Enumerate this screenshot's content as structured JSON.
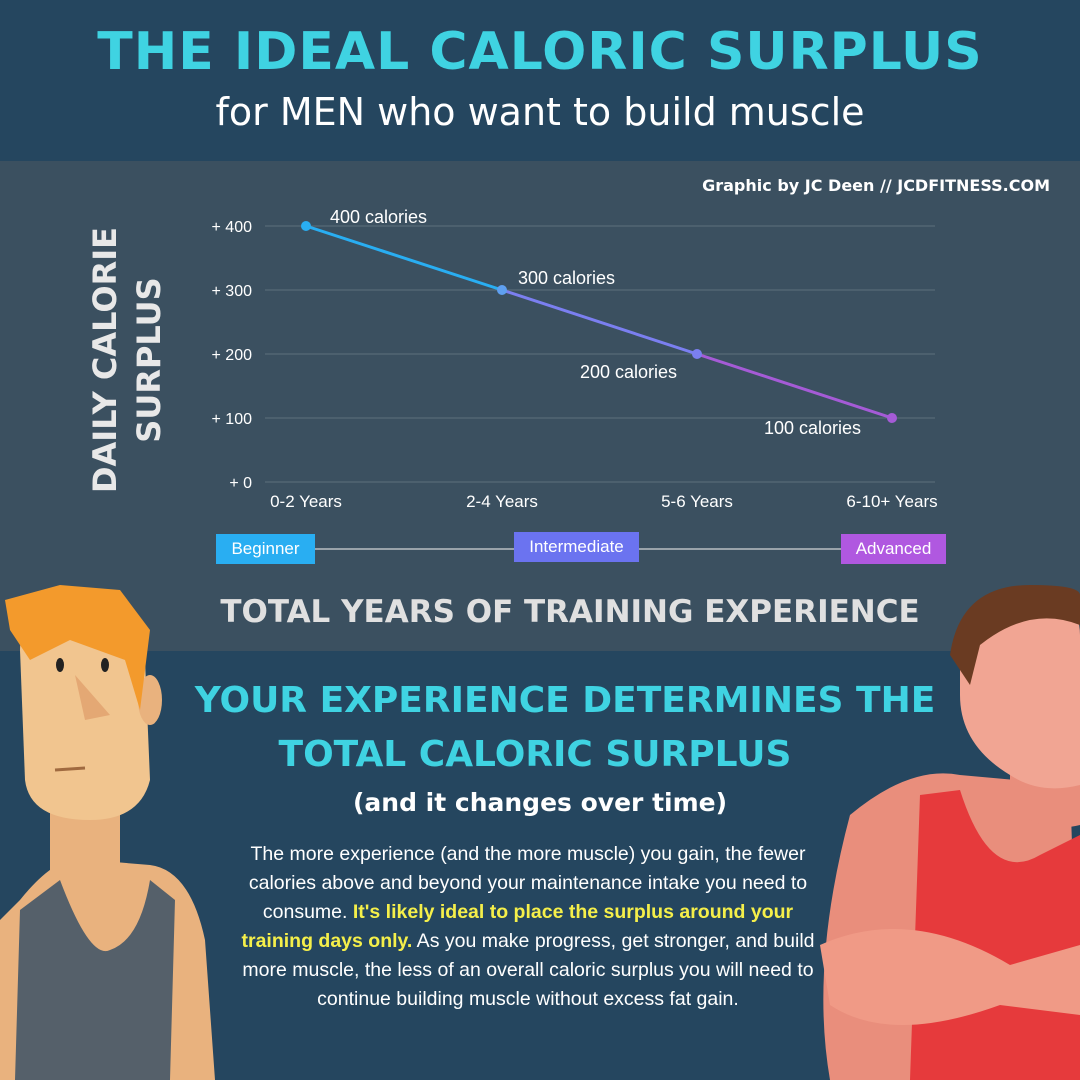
{
  "header": {
    "title": "THE IDEAL CALORIC SURPLUS",
    "subtitle": "for MEN who want to build muscle"
  },
  "credit": "Graphic by JC Deen // JCDFITNESS.COM",
  "chart_data": {
    "type": "line",
    "ylabel": "DAILY CALORIE SURPLUS",
    "xlabel": "TOTAL YEARS OF TRAINING EXPERIENCE",
    "categories": [
      "0-2 Years",
      "2-4 Years",
      "5-6 Years",
      "6-10+ Years"
    ],
    "values": [
      400,
      300,
      200,
      100
    ],
    "data_labels": [
      "400 calories",
      "300 calories",
      "200 calories",
      "100 calories"
    ],
    "yticks": [
      {
        "v": 0,
        "label": "+ 0"
      },
      {
        "v": 100,
        "label": "+ 100"
      },
      {
        "v": 200,
        "label": "+ 200"
      },
      {
        "v": 300,
        "label": "+ 300"
      },
      {
        "v": 400,
        "label": "+ 400"
      }
    ],
    "ylim": [
      0,
      400
    ],
    "grid": true,
    "segment_colors": [
      "#29aef2",
      "#7b7ff0",
      "#a55bd6"
    ],
    "stages": [
      {
        "label": "Beginner",
        "color": "#29aef2"
      },
      {
        "label": "Intermediate",
        "color": "#6b73f0"
      },
      {
        "label": "Advanced",
        "color": "#b058e0"
      }
    ]
  },
  "section": {
    "heading_line1": "YOUR EXPERIENCE DETERMINES THE",
    "heading_line2": "TOTAL CALORIC SURPLUS",
    "paren": "(and it changes over time)",
    "body_before": "The more experience (and the more muscle) you gain, the fewer calories above and beyond your maintenance intake you need to consume. ",
    "body_highlight": "It's likely ideal to place the surplus around your training days only.",
    "body_after": " As you make progress, get stronger, and build more muscle, the less of an overall caloric surplus you will need to continue building muscle without excess fat gain."
  }
}
